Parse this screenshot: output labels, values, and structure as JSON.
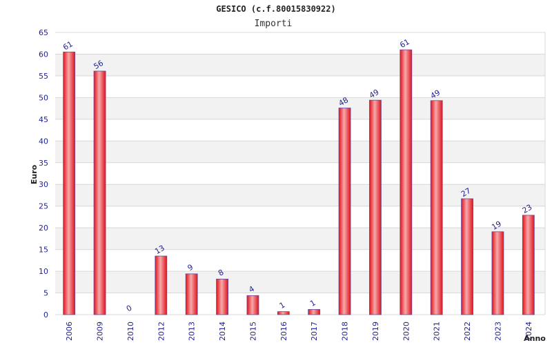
{
  "chart_data": {
    "type": "bar",
    "title": "GESICO (c.f.80015830922)",
    "subtitle": "Importi",
    "xlabel": "Anno",
    "ylabel": "Euro",
    "ylim": [
      0,
      65
    ],
    "yticks": [
      0,
      5,
      10,
      15,
      20,
      25,
      30,
      35,
      40,
      45,
      50,
      55,
      60,
      65
    ],
    "categories": [
      "2006",
      "2009",
      "2010",
      "2012",
      "2013",
      "2014",
      "2015",
      "2016",
      "2017",
      "2018",
      "2019",
      "2020",
      "2021",
      "2022",
      "2023",
      "2024"
    ],
    "values": [
      60.5,
      56.1,
      0,
      13.5,
      9.4,
      8.2,
      4.4,
      0.7,
      1.2,
      47.6,
      49.4,
      61.0,
      49.3,
      26.7,
      19.1,
      22.9
    ],
    "labels": [
      "61",
      "56",
      "0",
      "13",
      "9",
      "8",
      "4",
      "1",
      "1",
      "48",
      "49",
      "61",
      "49",
      "27",
      "19",
      "23"
    ],
    "grid": true,
    "legend": "none",
    "colors": {
      "bar_edge": "#e0121b",
      "bar_highlight": "#f6aaaa",
      "bar_outline": "#6a4a9a",
      "band": "#f2f2f2",
      "grid": "#d8d8d8",
      "text": "#1f1f8f"
    }
  }
}
